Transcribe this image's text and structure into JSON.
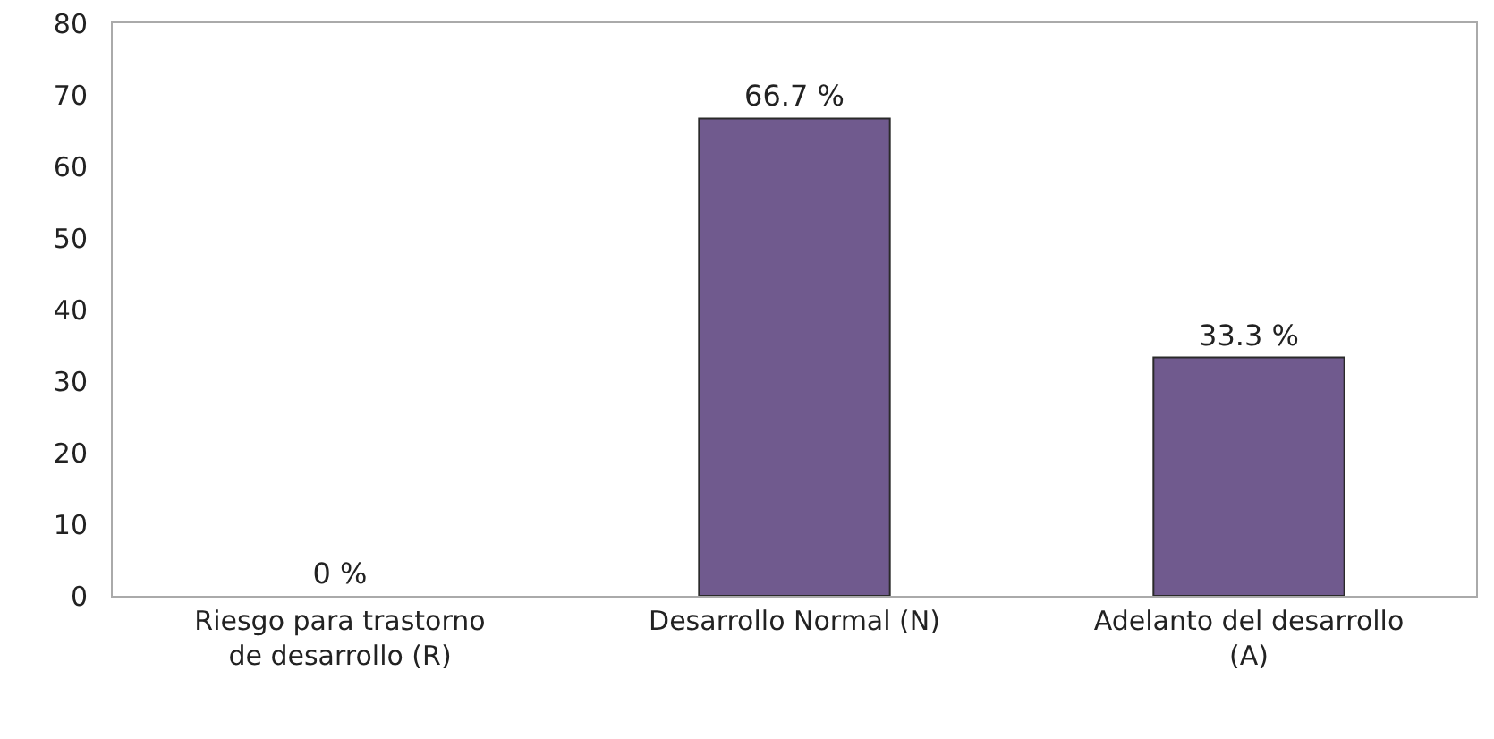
{
  "chart_data": {
    "type": "bar",
    "categories": [
      "Riesgo para trastorno de desarrollo (R)",
      "Desarrollo Normal (N)",
      "Adelanto del desarrollo (A)"
    ],
    "values": [
      0,
      66.7,
      33.3
    ],
    "value_labels": [
      "0 %",
      "66.7 %",
      "33.3 %"
    ],
    "color": "#705a8e",
    "ylim": [
      0,
      80
    ],
    "yticks": [
      0,
      10,
      20,
      30,
      40,
      50,
      60,
      70,
      80
    ],
    "grid": false
  }
}
